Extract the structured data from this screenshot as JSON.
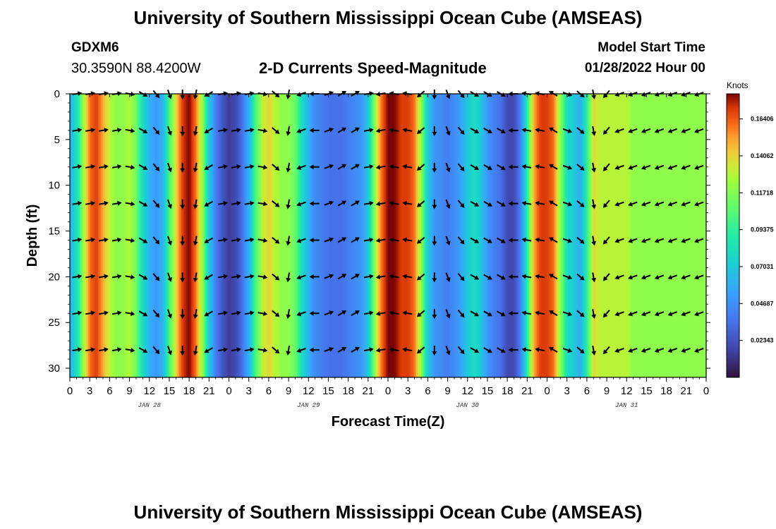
{
  "page": {
    "title": "University of Southern Mississippi Ocean Cube (AMSEAS)",
    "bottom_title": "University of Southern Mississippi Ocean Cube (AMSEAS)",
    "station": "GDXM6",
    "coordinates": "30.3590N  88.4200W",
    "subtitle": "2-D Currents Speed-Magnitude",
    "model_start_label": "Model Start Time",
    "model_start_value": "01/28/2022 Hour 00"
  },
  "chart_data": {
    "type": "heatmap",
    "title": "2-D Currents Speed-Magnitude",
    "xlabel": "Forecast Time(Z)",
    "ylabel": "Depth (ft)",
    "x_ticks": [
      "0",
      "3",
      "6",
      "9",
      "12",
      "15",
      "18",
      "21",
      "0",
      "3",
      "6",
      "9",
      "12",
      "15",
      "18",
      "21",
      "0",
      "3",
      "6",
      "9",
      "12",
      "15",
      "18",
      "21",
      "0",
      "3",
      "6",
      "9",
      "12",
      "15",
      "18",
      "21",
      "0"
    ],
    "x_range_hours": [
      0,
      96
    ],
    "day_labels": [
      {
        "label": "JAN 28",
        "hour": 12
      },
      {
        "label": "JAN 29",
        "hour": 36
      },
      {
        "label": "JAN 30",
        "hour": 60
      },
      {
        "label": "JAN 31",
        "hour": 84
      }
    ],
    "y_ticks": [
      "0",
      "5",
      "10",
      "15",
      "20",
      "25",
      "30"
    ],
    "y_range_ft": [
      0,
      31
    ],
    "colorbar": {
      "unit": "Knots",
      "tick_labels": [
        "0.16406",
        "0.14062",
        "0.11718",
        "0.09375",
        "0.07031",
        "0.04687",
        "0.02343"
      ],
      "tick_values": [
        0.16406,
        0.14062,
        0.11718,
        0.09375,
        0.07031,
        0.04687,
        0.02343
      ],
      "range": [
        0.0,
        0.18
      ]
    },
    "speed_profile": {
      "hours": [
        0,
        1,
        2,
        3,
        4,
        5,
        6,
        7,
        8,
        9,
        10,
        11,
        12,
        13,
        14,
        15,
        16,
        17,
        18,
        19,
        20,
        21,
        22,
        23,
        24,
        25,
        26,
        27,
        28,
        29,
        30,
        31,
        32,
        33,
        34,
        35,
        36,
        37,
        38,
        39,
        40,
        41,
        42,
        43,
        44,
        45,
        46,
        47,
        48,
        49,
        50,
        51,
        52,
        53,
        54,
        55,
        56,
        57,
        58,
        59,
        60,
        61,
        62,
        63,
        64,
        65,
        66,
        67,
        68,
        69,
        70,
        71,
        72,
        73,
        74,
        75,
        76,
        77,
        78,
        79,
        80,
        81,
        82,
        83,
        84,
        85,
        86,
        87,
        88,
        89,
        90,
        91,
        92,
        93,
        94,
        95,
        96
      ],
      "knots": [
        0.06,
        0.08,
        0.12,
        0.16,
        0.17,
        0.15,
        0.13,
        0.12,
        0.12,
        0.13,
        0.11,
        0.08,
        0.06,
        0.05,
        0.06,
        0.1,
        0.14,
        0.17,
        0.18,
        0.16,
        0.12,
        0.07,
        0.04,
        0.025,
        0.015,
        0.02,
        0.035,
        0.06,
        0.1,
        0.13,
        0.14,
        0.13,
        0.12,
        0.12,
        0.11,
        0.08,
        0.06,
        0.045,
        0.04,
        0.035,
        0.035,
        0.035,
        0.04,
        0.045,
        0.05,
        0.07,
        0.12,
        0.16,
        0.18,
        0.18,
        0.17,
        0.17,
        0.16,
        0.12,
        0.07,
        0.05,
        0.045,
        0.04,
        0.045,
        0.055,
        0.07,
        0.08,
        0.07,
        0.05,
        0.04,
        0.035,
        0.02,
        0.02,
        0.04,
        0.09,
        0.15,
        0.17,
        0.17,
        0.16,
        0.12,
        0.08,
        0.07,
        0.06,
        0.09,
        0.14,
        0.13,
        0.13,
        0.13,
        0.13,
        0.13,
        0.12,
        0.12,
        0.12,
        0.12,
        0.12,
        0.12,
        0.12,
        0.12,
        0.12,
        0.12,
        0.12,
        0.12
      ]
    },
    "vectors": {
      "depths_ft": [
        0,
        4,
        8,
        12,
        16,
        20,
        24,
        28
      ],
      "hours": [
        1,
        3,
        5,
        7,
        9,
        11,
        13,
        15,
        17,
        19,
        21,
        23,
        25,
        27,
        29,
        31,
        33,
        35,
        37,
        39,
        41,
        43,
        45,
        47,
        49,
        51,
        53,
        55,
        57,
        59,
        61,
        63,
        65,
        67,
        69,
        71,
        73,
        75,
        77,
        79,
        81,
        83,
        85,
        87,
        89,
        91,
        93,
        95
      ]
    },
    "directions_deg": [
      80,
      80,
      80,
      80,
      80,
      80,
      80,
      80,
      100,
      100,
      110,
      120,
      130,
      140,
      150,
      160,
      170,
      180,
      185,
      190,
      200,
      240,
      280,
      80,
      80,
      80,
      80,
      80,
      90,
      100,
      110,
      130,
      160,
      190,
      220,
      250,
      260,
      270,
      80,
      70,
      60,
      60,
      60,
      60,
      70,
      80,
      90,
      260,
      270,
      280,
      280,
      280,
      270,
      230,
      200,
      180,
      170,
      160,
      150,
      140,
      130,
      120,
      120,
      120,
      120,
      120,
      250,
      270,
      270,
      280,
      280,
      280,
      290,
      300,
      100,
      110,
      120,
      130,
      150,
      170,
      190,
      220,
      240,
      250,
      250,
      250,
      250,
      250,
      250,
      250,
      250,
      250,
      250,
      250,
      250,
      250,
      250
    ]
  }
}
